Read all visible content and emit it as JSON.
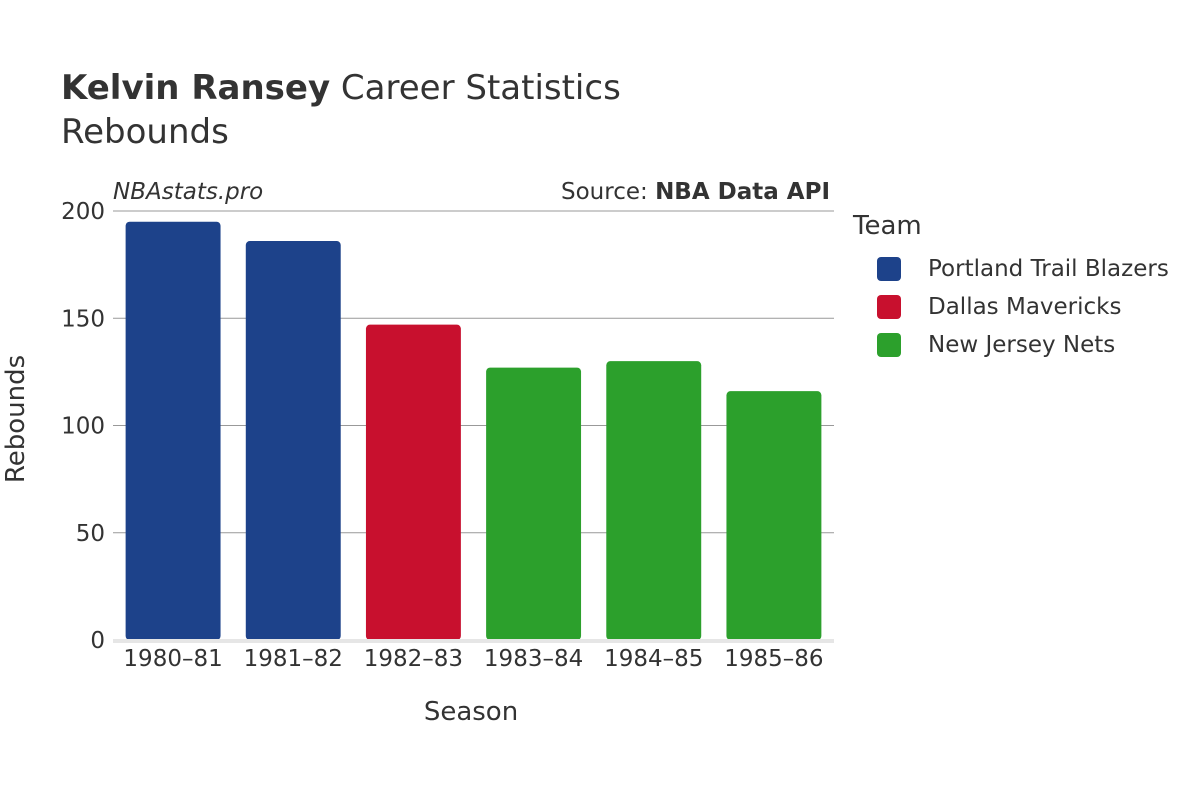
{
  "header": {
    "title_bold": "Kelvin Ransey",
    "title_rest": " Career Statistics",
    "subtitle": "Rebounds",
    "watermark": "NBAstats.pro",
    "source_prefix": "Source: ",
    "source_bold": "NBA Data API"
  },
  "chart_data": {
    "type": "bar",
    "xlabel": "Season",
    "ylabel": "Rebounds",
    "ylim": [
      0,
      200
    ],
    "yticks": [
      0,
      50,
      100,
      150,
      200
    ],
    "grid": true,
    "legend_placement": "right",
    "legend_title": "Team",
    "categories": [
      "1980–81",
      "1981–82",
      "1982–83",
      "1983–84",
      "1984–85",
      "1985–86"
    ],
    "values": [
      195,
      186,
      147,
      127,
      130,
      116
    ],
    "teams": [
      "Portland Trail Blazers",
      "Portland Trail Blazers",
      "Dallas Mavericks",
      "New Jersey Nets",
      "New Jersey Nets",
      "New Jersey Nets"
    ],
    "series": [
      {
        "name": "Portland Trail Blazers",
        "color": "#1d428a"
      },
      {
        "name": "Dallas Mavericks",
        "color": "#c8102e"
      },
      {
        "name": "New Jersey Nets",
        "color": "#2ca02c"
      }
    ]
  }
}
